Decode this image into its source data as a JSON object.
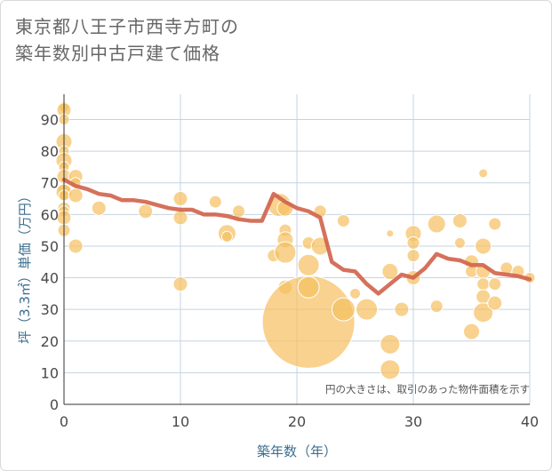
{
  "title_line1": "東京都八王子市西寺方町の",
  "title_line2": "築年数別中古戸建て価格",
  "chart_data": {
    "type": "scatter",
    "title": "東京都八王子市西寺方町の築年数別中古戸建て価格",
    "xlabel": "築年数（年）",
    "ylabel": "坪（3.3㎡）単価（万円）",
    "xlim": [
      0,
      40
    ],
    "ylim": [
      0,
      98
    ],
    "xticks": [
      0,
      10,
      20,
      30,
      40
    ],
    "yticks": [
      0,
      10,
      20,
      30,
      40,
      50,
      60,
      70,
      80,
      90
    ],
    "grid": true,
    "annotation": "円の大きさは、取引のあった物件面積を示す",
    "colors": {
      "bubble": "#f5c063",
      "line": "#d0624a",
      "axis_text": "#4a4a4a",
      "label_text": "#3d6e8f",
      "grid": "#c5d3e0"
    },
    "points": [
      {
        "x": 0,
        "y": 94,
        "s": 6
      },
      {
        "x": 0,
        "y": 93,
        "s": 8
      },
      {
        "x": 0,
        "y": 90,
        "s": 6
      },
      {
        "x": 0,
        "y": 83,
        "s": 9
      },
      {
        "x": 0,
        "y": 80,
        "s": 6
      },
      {
        "x": 0,
        "y": 77,
        "s": 9
      },
      {
        "x": 0,
        "y": 75,
        "s": 6
      },
      {
        "x": 0,
        "y": 72,
        "s": 8
      },
      {
        "x": 0,
        "y": 68,
        "s": 7
      },
      {
        "x": 0,
        "y": 67,
        "s": 9
      },
      {
        "x": 0,
        "y": 66,
        "s": 6
      },
      {
        "x": 0,
        "y": 62,
        "s": 7
      },
      {
        "x": 0,
        "y": 61,
        "s": 6
      },
      {
        "x": 0,
        "y": 59,
        "s": 8
      },
      {
        "x": 0,
        "y": 55,
        "s": 7
      },
      {
        "x": 1,
        "y": 72,
        "s": 8
      },
      {
        "x": 1,
        "y": 70,
        "s": 6
      },
      {
        "x": 1,
        "y": 66,
        "s": 8
      },
      {
        "x": 1,
        "y": 50,
        "s": 8
      },
      {
        "x": 3,
        "y": 62,
        "s": 8
      },
      {
        "x": 7,
        "y": 61,
        "s": 8
      },
      {
        "x": 10,
        "y": 65,
        "s": 8
      },
      {
        "x": 10,
        "y": 59,
        "s": 8
      },
      {
        "x": 10,
        "y": 38,
        "s": 8
      },
      {
        "x": 13,
        "y": 64,
        "s": 7
      },
      {
        "x": 14,
        "y": 54,
        "s": 10
      },
      {
        "x": 14,
        "y": 53,
        "s": 6
      },
      {
        "x": 15,
        "y": 61,
        "s": 7
      },
      {
        "x": 18,
        "y": 47,
        "s": 7
      },
      {
        "x": 18.5,
        "y": 63,
        "s": 13
      },
      {
        "x": 19,
        "y": 62,
        "s": 9
      },
      {
        "x": 19,
        "y": 55,
        "s": 7
      },
      {
        "x": 19,
        "y": 52,
        "s": 9
      },
      {
        "x": 19,
        "y": 48,
        "s": 12
      },
      {
        "x": 19,
        "y": 37,
        "s": 8
      },
      {
        "x": 21,
        "y": 26,
        "s": 52
      },
      {
        "x": 21,
        "y": 51,
        "s": 7
      },
      {
        "x": 21,
        "y": 44,
        "s": 12
      },
      {
        "x": 21,
        "y": 37,
        "s": 12
      },
      {
        "x": 22,
        "y": 61,
        "s": 7
      },
      {
        "x": 22,
        "y": 50,
        "s": 10
      },
      {
        "x": 24,
        "y": 58,
        "s": 7
      },
      {
        "x": 24,
        "y": 30,
        "s": 13
      },
      {
        "x": 25,
        "y": 35,
        "s": 6
      },
      {
        "x": 26,
        "y": 30,
        "s": 12
      },
      {
        "x": 28,
        "y": 54,
        "s": 4
      },
      {
        "x": 28,
        "y": 42,
        "s": 9
      },
      {
        "x": 28,
        "y": 19,
        "s": 11
      },
      {
        "x": 28,
        "y": 11,
        "s": 11
      },
      {
        "x": 29,
        "y": 30,
        "s": 8
      },
      {
        "x": 30,
        "y": 54,
        "s": 9
      },
      {
        "x": 30,
        "y": 51,
        "s": 7
      },
      {
        "x": 30,
        "y": 47,
        "s": 7
      },
      {
        "x": 30,
        "y": 40,
        "s": 8
      },
      {
        "x": 32,
        "y": 57,
        "s": 10
      },
      {
        "x": 32,
        "y": 31,
        "s": 7
      },
      {
        "x": 34,
        "y": 58,
        "s": 8
      },
      {
        "x": 34,
        "y": 51,
        "s": 6
      },
      {
        "x": 35,
        "y": 45,
        "s": 8
      },
      {
        "x": 35,
        "y": 42,
        "s": 7
      },
      {
        "x": 35,
        "y": 23,
        "s": 9
      },
      {
        "x": 36,
        "y": 73,
        "s": 5
      },
      {
        "x": 36,
        "y": 50,
        "s": 9
      },
      {
        "x": 36,
        "y": 42,
        "s": 8
      },
      {
        "x": 36,
        "y": 38,
        "s": 7
      },
      {
        "x": 36,
        "y": 34,
        "s": 8
      },
      {
        "x": 36,
        "y": 29,
        "s": 11
      },
      {
        "x": 37,
        "y": 57,
        "s": 7
      },
      {
        "x": 37,
        "y": 38,
        "s": 7
      },
      {
        "x": 37,
        "y": 32,
        "s": 8
      },
      {
        "x": 38,
        "y": 43,
        "s": 7
      },
      {
        "x": 39,
        "y": 42,
        "s": 7
      },
      {
        "x": 40,
        "y": 40,
        "s": 6
      }
    ],
    "trend": {
      "x": [
        0,
        1,
        2,
        3,
        4,
        5,
        6,
        7,
        8,
        9,
        10,
        11,
        12,
        13,
        14,
        15,
        16,
        17,
        18,
        19,
        20,
        21,
        22,
        23,
        24,
        25,
        26,
        27,
        28,
        29,
        30,
        31,
        32,
        33,
        34,
        35,
        36,
        37,
        38,
        39,
        40
      ],
      "y": [
        71,
        69,
        68,
        66.5,
        66,
        64.5,
        64.5,
        64,
        63,
        62,
        61.5,
        61.5,
        60,
        60,
        59.5,
        58.5,
        58,
        58,
        66.5,
        64,
        62,
        61,
        59,
        45,
        42.5,
        42,
        38,
        35,
        38,
        41,
        40,
        43,
        47.5,
        46,
        45.5,
        44,
        44,
        41.5,
        41,
        40.5,
        39.5
      ]
    }
  }
}
